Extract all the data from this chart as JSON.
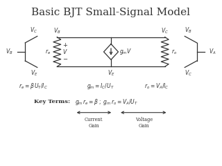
{
  "title": "Basic BJT Small-Signal Model",
  "title_fontsize": 11,
  "bg_color": "#ffffff",
  "text_color": "#333333",
  "formula1": "$r_e = \\beta\\, U_T / I_C$",
  "formula2": "$g_m = I_C / U_T$",
  "formula3": "$r_o = V_A / I_C$",
  "key_terms_label": "Key Terms:",
  "key_terms": "$g_m\\, r_e = \\beta\\;$  $;\\; g_m\\, r_o = V_A / U_T$",
  "current_gain": "Current\nGain",
  "voltage_gain": "Voltage\nGain",
  "lw": 0.9
}
